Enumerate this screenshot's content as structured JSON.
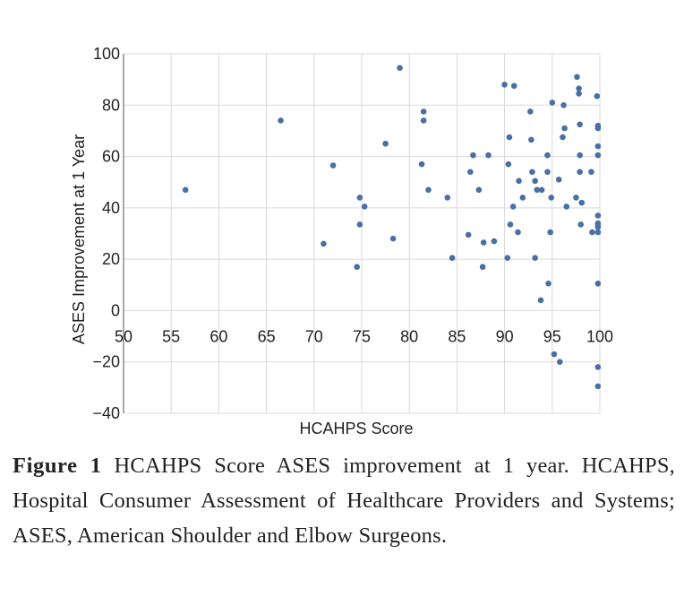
{
  "chart_data": {
    "type": "scatter",
    "title": "",
    "xlabel": "HCAHPS Score",
    "ylabel": "ASES Improvement at 1 Year",
    "xlim": [
      50,
      100
    ],
    "ylim": [
      -40,
      100
    ],
    "x_ticks": [
      "50",
      "55",
      "60",
      "65",
      "70",
      "75",
      "80",
      "85",
      "90",
      "95",
      "100"
    ],
    "y_ticks": [
      "100",
      "80",
      "60",
      "40",
      "20",
      "0",
      "−20",
      "−40"
    ],
    "grid": true,
    "point_color": "#4a6fa5",
    "points": [
      [
        56.5,
        47
      ],
      [
        66.5,
        74
      ],
      [
        71,
        26
      ],
      [
        72,
        56.5
      ],
      [
        74.5,
        17
      ],
      [
        74.8,
        33.5
      ],
      [
        74.8,
        44
      ],
      [
        75.3,
        40.5
      ],
      [
        77.5,
        65
      ],
      [
        78.3,
        28
      ],
      [
        79,
        94.5
      ],
      [
        81.3,
        57
      ],
      [
        81.5,
        74
      ],
      [
        81.5,
        77.5
      ],
      [
        82,
        47
      ],
      [
        84,
        44
      ],
      [
        84.5,
        20.5
      ],
      [
        86.2,
        29.5
      ],
      [
        86.4,
        54
      ],
      [
        86.7,
        60.5
      ],
      [
        87.3,
        47
      ],
      [
        87.7,
        17
      ],
      [
        87.8,
        26.5
      ],
      [
        88.3,
        60.5
      ],
      [
        88.9,
        27
      ],
      [
        90,
        88
      ],
      [
        90.3,
        20.5
      ],
      [
        90.4,
        57
      ],
      [
        90.5,
        67.5
      ],
      [
        90.6,
        33.5
      ],
      [
        90.9,
        40.5
      ],
      [
        91,
        87.5
      ],
      [
        91.4,
        30.5
      ],
      [
        91.5,
        50.5
      ],
      [
        91.9,
        44
      ],
      [
        92.7,
        77.5
      ],
      [
        92.8,
        66.5
      ],
      [
        92.9,
        54
      ],
      [
        93.2,
        20.5
      ],
      [
        93.2,
        50.5
      ],
      [
        93.4,
        47
      ],
      [
        93.8,
        4
      ],
      [
        93.9,
        47
      ],
      [
        94.5,
        60.5
      ],
      [
        94.5,
        54
      ],
      [
        94.6,
        10.5
      ],
      [
        94.8,
        30.5
      ],
      [
        94.9,
        44
      ],
      [
        95,
        81
      ],
      [
        95.2,
        -17
      ],
      [
        95.7,
        51
      ],
      [
        95.8,
        -20
      ],
      [
        96.1,
        67.5
      ],
      [
        96.2,
        80
      ],
      [
        96.3,
        71
      ],
      [
        96.5,
        40.5
      ],
      [
        97.5,
        44
      ],
      [
        97.6,
        91
      ],
      [
        97.8,
        84.5
      ],
      [
        97.8,
        86.5
      ],
      [
        97.9,
        72.5
      ],
      [
        97.9,
        60.5
      ],
      [
        97.9,
        54
      ],
      [
        98,
        33.5
      ],
      [
        98.1,
        42
      ],
      [
        99.1,
        54
      ],
      [
        99.2,
        30.5
      ],
      [
        99.7,
        83.5
      ],
      [
        99.8,
        72
      ],
      [
        99.8,
        71
      ],
      [
        99.8,
        64
      ],
      [
        99.8,
        60.5
      ],
      [
        99.8,
        37
      ],
      [
        99.8,
        34
      ],
      [
        99.8,
        33
      ],
      [
        99.8,
        32.5
      ],
      [
        99.8,
        30.5
      ],
      [
        99.8,
        10.5
      ],
      [
        99.8,
        -22
      ],
      [
        99.8,
        -29.5
      ]
    ]
  },
  "caption": {
    "label": "Figure 1",
    "text": "HCAHPS Score ASES improvement at 1 year. HCAHPS, Hospital Consumer Assessment of Healthcare Providers and Systems; ASES, American Shoulder and Elbow Surgeons."
  }
}
